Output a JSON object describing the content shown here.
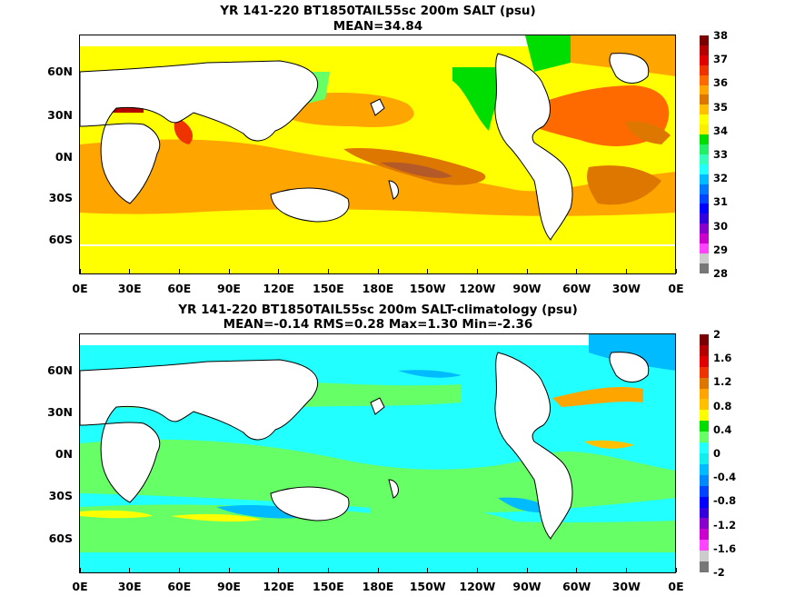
{
  "chart_data": [
    {
      "type": "heatmap",
      "title": "YR 141-220 BT1850TAIL55sc 200m SALT (psu)",
      "subtitle": "MEAN=34.84",
      "x_ticks": [
        "0E",
        "30E",
        "60E",
        "90E",
        "120E",
        "150E",
        "180E",
        "150W",
        "120W",
        "90W",
        "60W",
        "30W",
        "0E"
      ],
      "y_ticks": [
        "60N",
        "30N",
        "0N",
        "30S",
        "60S"
      ],
      "colorbar": {
        "ticks": [
          "38",
          "37",
          "36",
          "35",
          "34",
          "33",
          "32",
          "31",
          "30",
          "29",
          "28"
        ],
        "colors": [
          "#7a0000",
          "#b40000",
          "#e00000",
          "#ee3300",
          "#ff6a00",
          "#ffa500",
          "#dd7700",
          "#ffc000",
          "#ffff00",
          "#f8f000",
          "#00dd00",
          "#22ee66",
          "#33ffbb",
          "#22ffff",
          "#00bbff",
          "#0077ff",
          "#0044ff",
          "#0000ff",
          "#3300dd",
          "#8800cc",
          "#cc00cc",
          "#ff44ff",
          "#cccccc",
          "#777777"
        ]
      }
    },
    {
      "type": "heatmap",
      "title": "YR 141-220 BT1850TAIL55sc 200m SALT-climatology (psu)",
      "subtitle": "MEAN=-0.14   RMS=0.28   Max=1.30   Min=-2.36",
      "x_ticks": [
        "0E",
        "30E",
        "60E",
        "90E",
        "120E",
        "150E",
        "180E",
        "150W",
        "120W",
        "90W",
        "60W",
        "30W",
        "0E"
      ],
      "y_ticks": [
        "60N",
        "30N",
        "0N",
        "30S",
        "60S"
      ],
      "colorbar": {
        "ticks": [
          "2",
          "1.6",
          "1.2",
          "0.8",
          "0.4",
          "0",
          "-0.4",
          "-0.8",
          "-1.2",
          "-1.6",
          "-2"
        ],
        "colors": [
          "#7a0000",
          "#b40000",
          "#e00000",
          "#ee3300",
          "#dd7700",
          "#ffa500",
          "#ffc000",
          "#ffff00",
          "#00dd00",
          "#66ff66",
          "#22ffff",
          "#11eeee",
          "#00bbff",
          "#0088ff",
          "#0044ff",
          "#0000ff",
          "#3300dd",
          "#8800cc",
          "#cc00cc",
          "#ff44ff",
          "#cccccc",
          "#777777"
        ]
      }
    }
  ]
}
